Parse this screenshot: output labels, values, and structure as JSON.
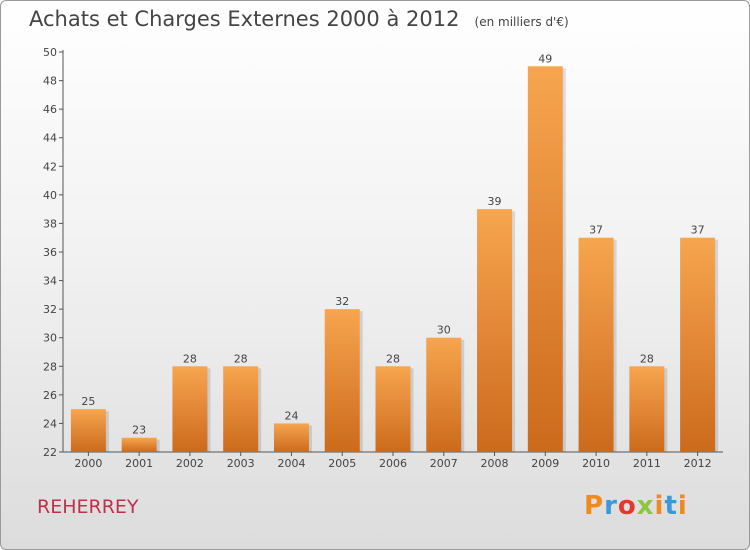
{
  "chart_data": {
    "type": "bar",
    "title": "Achats et Charges Externes 2000 à 2012",
    "subtitle": "(en milliers d'€)",
    "categories": [
      "2000",
      "2001",
      "2002",
      "2003",
      "2004",
      "2005",
      "2006",
      "2007",
      "2008",
      "2009",
      "2010",
      "2011",
      "2012"
    ],
    "values": [
      25,
      23,
      28,
      28,
      24,
      32,
      28,
      30,
      39,
      49,
      37,
      28,
      37
    ],
    "ylim": [
      22,
      50
    ],
    "yticks": [
      22,
      24,
      26,
      28,
      30,
      32,
      34,
      36,
      38,
      40,
      42,
      44,
      46,
      48,
      50
    ],
    "grid": false,
    "xlabel": "",
    "ylabel": "",
    "bar_colors": {
      "light": "#f7a54f",
      "dark": "#cc6a1c"
    }
  },
  "footer": {
    "place": "REHERREY",
    "logo": "Proxiti",
    "logo_colors": [
      "#f08a1c",
      "#3a9ad9",
      "#e4382a",
      "#8dc63f",
      "#f08a1c",
      "#3a9ad9",
      "#f08a1c"
    ]
  }
}
